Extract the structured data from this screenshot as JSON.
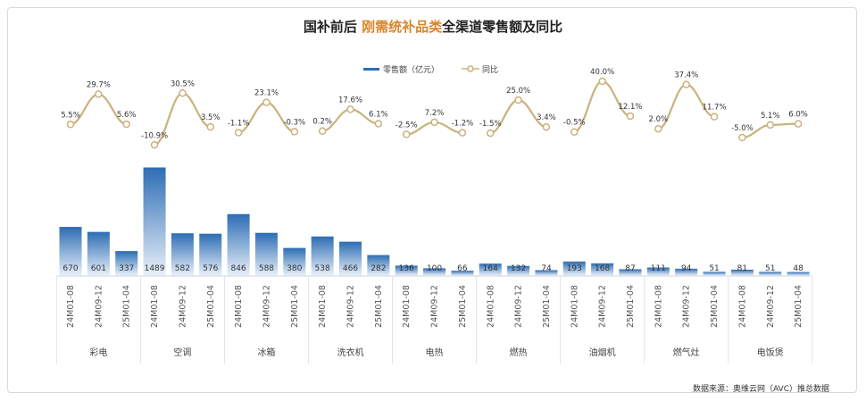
{
  "chart_data": {
    "type": "bar+line",
    "title_parts": [
      {
        "text": "国补前后 ",
        "color": "#222222"
      },
      {
        "text": "刚需统补品类",
        "color": "#d9862b"
      },
      {
        "text": "全渠道零售额及同比",
        "color": "#222222"
      }
    ],
    "legend": {
      "bar_label": "零售额（亿元）",
      "line_label": "同比",
      "position": "top-center"
    },
    "periods": [
      "24M01-08",
      "24M09-12",
      "25M01-04"
    ],
    "groups": [
      "彩电",
      "空调",
      "冰箱",
      "洗衣机",
      "电热",
      "燃热",
      "油烟机",
      "燃气灶",
      "电饭煲"
    ],
    "series": [
      {
        "name": "零售额（亿元）",
        "type": "bar",
        "values": [
          670,
          601,
          337,
          1489,
          582,
          576,
          846,
          588,
          380,
          538,
          466,
          282,
          136,
          100,
          66,
          164,
          132,
          74,
          193,
          168,
          87,
          111,
          94,
          51,
          81,
          51,
          48
        ]
      },
      {
        "name": "同比",
        "type": "line",
        "values": [
          5.5,
          29.7,
          5.6,
          -10.9,
          30.5,
          3.5,
          -1.1,
          23.1,
          -0.3,
          0.2,
          17.6,
          6.1,
          -2.5,
          7.2,
          -1.2,
          -1.5,
          25.0,
          3.4,
          -0.5,
          40.0,
          12.1,
          2.0,
          37.4,
          11.7,
          -5.0,
          5.1,
          6.0
        ],
        "labels": [
          "5.5%",
          "29.7%",
          "5.6%",
          "-10.9%",
          "30.5%",
          "3.5%",
          "-1.1%",
          "23.1%",
          "-0.3%",
          "0.2%",
          "17.6%",
          "6.1%",
          "-2.5%",
          "7.2%",
          "-1.2%",
          "-1.5%",
          "25.0%",
          "3.4%",
          "-0.5%",
          "40.0%",
          "12.1%",
          "2.0%",
          "37.4%",
          "11.7%",
          "-5.0%",
          "5.1%",
          "6.0%"
        ]
      }
    ],
    "colors": {
      "bar_top": "#2d6db4",
      "bar_bottom": "#e8f0f9",
      "line": "#c9b27c",
      "marker_fill": "#ffffff",
      "title_accent": "#d9862b"
    },
    "source": "数据来源：奥维云网（AVC）推总数据",
    "watermark": "奥维云网 AVC"
  }
}
